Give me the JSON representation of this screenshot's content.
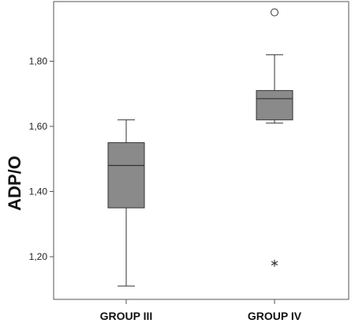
{
  "chart_data": {
    "type": "boxplot",
    "ylabel": "ADP/O",
    "xlabel": "",
    "ylim": [
      1.05,
      2.0
    ],
    "yticks": [
      1.2,
      1.4,
      1.6,
      1.8
    ],
    "ytick_labels": [
      "1,20",
      "1,40",
      "1,60",
      "1,80"
    ],
    "grid": false,
    "categories": [
      "GROUP III",
      "GROUP IV"
    ],
    "boxes": [
      {
        "category": "GROUP III",
        "whisker_low": 1.11,
        "q1": 1.35,
        "median": 1.48,
        "q3": 1.55,
        "whisker_high": 1.62,
        "outliers": [],
        "extremes": []
      },
      {
        "category": "GROUP IV",
        "whisker_low": 1.61,
        "q1": 1.62,
        "median": 1.685,
        "q3": 1.71,
        "whisker_high": 1.82,
        "outliers": [
          1.95
        ],
        "extremes": [
          1.18
        ]
      }
    ],
    "colors": {
      "box_fill": "#8a8a8a",
      "line": "#333333",
      "frame": "#555555"
    }
  }
}
